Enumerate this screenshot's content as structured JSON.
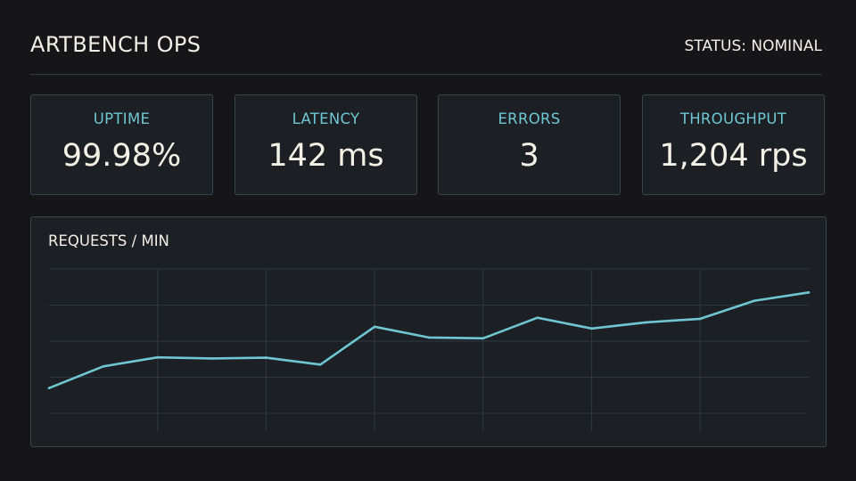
{
  "header": {
    "title": "ARTBENCH OPS",
    "status": "STATUS: NOMINAL"
  },
  "metrics": [
    {
      "label": "UPTIME",
      "value": "99.98%"
    },
    {
      "label": "LATENCY",
      "value": "142 ms"
    },
    {
      "label": "ERRORS",
      "value": "3"
    },
    {
      "label": "THROUGHPUT",
      "value": "1,204 rps"
    }
  ],
  "colors": {
    "background": "#161618",
    "panel": "#1c2024",
    "border": "#36474c",
    "accent": "#6fc6d2",
    "text": "#f2efe6"
  },
  "chart_data": {
    "type": "line",
    "title": "REQUESTS / MIN",
    "xlabel": "",
    "ylabel": "",
    "grid": true,
    "legend": "none",
    "ylim": [
      0,
      4
    ],
    "series": [
      {
        "values": [
          0.7,
          1.3,
          1.55,
          1.52,
          1.54,
          1.35,
          2.4,
          2.1,
          2.08,
          2.65,
          2.35,
          2.52,
          2.62,
          3.12,
          3.35
        ]
      }
    ]
  }
}
